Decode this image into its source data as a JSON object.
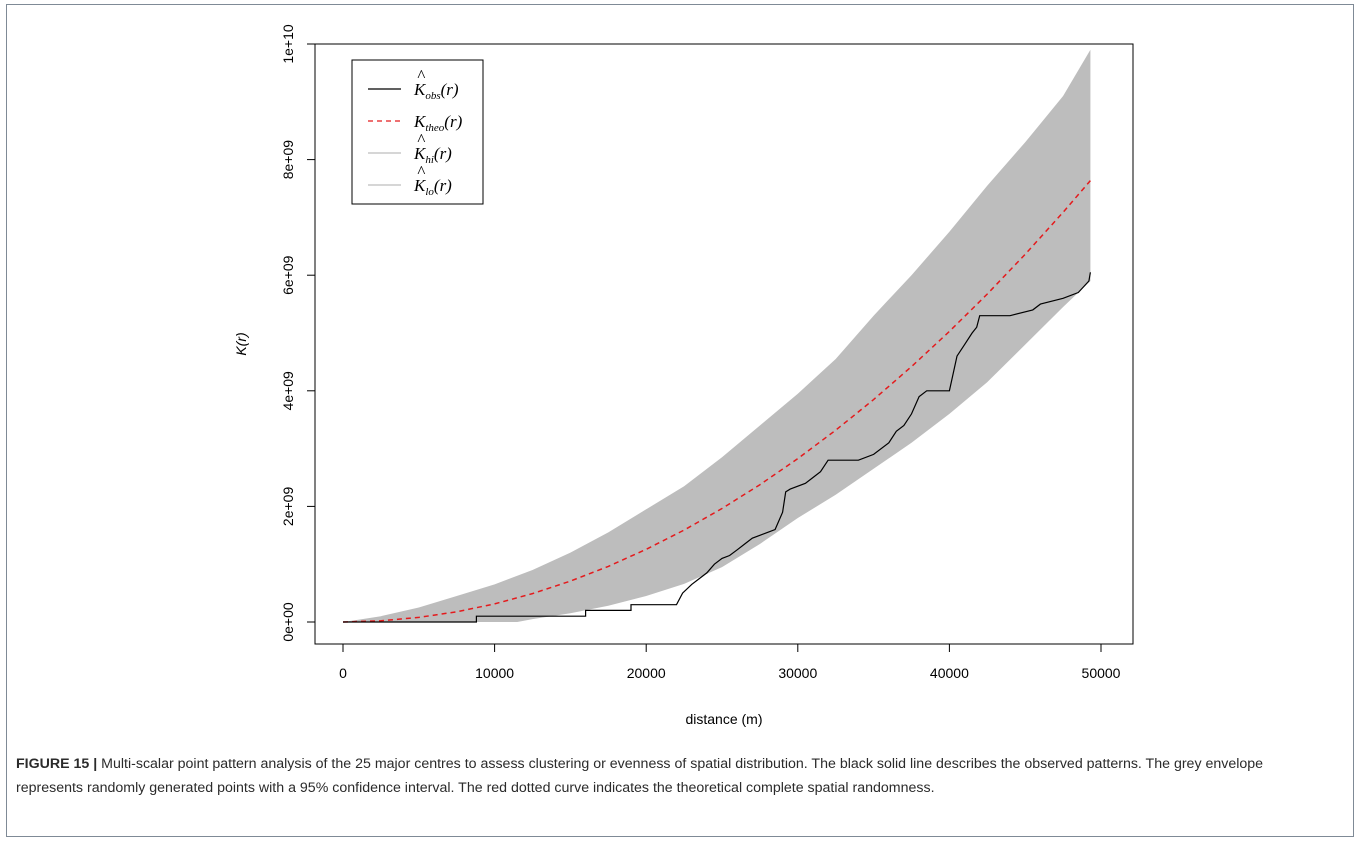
{
  "caption": {
    "label": "FIGURE 15 |",
    "text": " Multi-scalar point pattern analysis of the 25 major centres to assess clustering or evenness of spatial distribution. The black solid line describes the observed patterns. The grey envelope represents randomly generated points with a 95% confidence interval. The red dotted curve indicates the theoretical complete spatial randomness."
  },
  "chart_data": {
    "type": "line",
    "title": "",
    "xlabel": "distance (m)",
    "ylabel": "K(r)",
    "xlim": [
      0,
      49300
    ],
    "ylim": [
      0,
      10000000000
    ],
    "x_ticks": [
      0,
      10000,
      20000,
      30000,
      40000,
      50000
    ],
    "x_tick_labels": [
      "0",
      "10000",
      "20000",
      "30000",
      "40000",
      "50000"
    ],
    "y_ticks": [
      0,
      2000000000,
      4000000000,
      6000000000,
      8000000000,
      10000000000
    ],
    "y_tick_labels": [
      "0e+00",
      "2e+09",
      "4e+09",
      "6e+09",
      "8e+09",
      "1e+10"
    ],
    "grid": false,
    "legend_position": "top-left",
    "colors": {
      "observed": "#000000",
      "theoretical": "#e41a1c",
      "envelope": "#bdbdbd"
    },
    "legend": [
      {
        "base": "K",
        "hat": true,
        "sub": "obs",
        "arg": "(r)",
        "style": "solid",
        "color": "#000000"
      },
      {
        "base": "K",
        "hat": false,
        "sub": "theo",
        "arg": "(r)",
        "style": "dashed",
        "color": "#e41a1c"
      },
      {
        "base": "K",
        "hat": true,
        "sub": "hi",
        "arg": "(r)",
        "style": "solid",
        "color": "#bdbdbd"
      },
      {
        "base": "K",
        "hat": true,
        "sub": "lo",
        "arg": "(r)",
        "style": "solid",
        "color": "#bdbdbd"
      }
    ],
    "series": [
      {
        "name": "K_hi(r)",
        "x": [
          0,
          1000,
          2500,
          5000,
          7500,
          10000,
          12500,
          15000,
          17500,
          20000,
          22500,
          25000,
          27500,
          30000,
          32500,
          35000,
          37500,
          40000,
          42500,
          45000,
          47500,
          49300
        ],
        "values": [
          0,
          40000000,
          100000000,
          250000000,
          450000000,
          650000000,
          900000000,
          1200000000,
          1550000000,
          1950000000,
          2350000000,
          2850000000,
          3400000000,
          3950000000,
          4550000000,
          5300000000,
          6000000000,
          6750000000,
          7550000000,
          8300000000,
          9100000000,
          9900000000
        ]
      },
      {
        "name": "K_lo(r)",
        "x": [
          0,
          1000,
          2500,
          5000,
          7500,
          10000,
          11500,
          12500,
          15000,
          17500,
          20000,
          22500,
          25000,
          27500,
          30000,
          32500,
          35000,
          37500,
          40000,
          42500,
          45000,
          47500,
          49300
        ],
        "values": [
          0,
          0,
          0,
          0,
          0,
          0,
          0,
          50000000,
          150000000,
          280000000,
          450000000,
          660000000,
          950000000,
          1350000000,
          1800000000,
          2200000000,
          2650000000,
          3100000000,
          3600000000,
          4150000000,
          4800000000,
          5450000000,
          5900000000
        ]
      },
      {
        "name": "K_theo(r)",
        "x": [
          0,
          2500,
          5000,
          7500,
          10000,
          12500,
          15000,
          17500,
          20000,
          22500,
          25000,
          27500,
          30000,
          32500,
          35000,
          37500,
          40000,
          42500,
          45000,
          47500,
          49300
        ],
        "values": [
          0,
          20000000,
          79000000,
          177000000,
          314000000,
          491000000,
          707000000,
          962000000,
          1257000000,
          1590000000,
          1963000000,
          2376000000,
          2827000000,
          3318000000,
          3848000000,
          4418000000,
          5027000000,
          5675000000,
          6362000000,
          7088000000,
          7636000000
        ]
      },
      {
        "name": "K_obs(r)",
        "x": [
          0,
          8800,
          8800,
          16000,
          16000,
          19000,
          19000,
          22000,
          22400,
          23000,
          23500,
          24000,
          24500,
          25000,
          25500,
          26000,
          26500,
          27000,
          27500,
          28000,
          28500,
          29000,
          29200,
          29500,
          30500,
          31000,
          31500,
          32000,
          33000,
          34000,
          35000,
          36000,
          36500,
          37000,
          37500,
          38000,
          38500,
          40000,
          40500,
          41000,
          41500,
          41800,
          42000,
          44000,
          45500,
          46000,
          47500,
          48500,
          49200,
          49300
        ],
        "values": [
          0,
          0,
          100000000,
          100000000,
          200000000,
          200000000,
          300000000,
          300000000,
          500000000,
          650000000,
          750000000,
          850000000,
          1000000000,
          1100000000,
          1150000000,
          1250000000,
          1350000000,
          1450000000,
          1500000000,
          1550000000,
          1600000000,
          1900000000,
          2250000000,
          2300000000,
          2400000000,
          2500000000,
          2600000000,
          2800000000,
          2800000000,
          2800000000,
          2900000000,
          3100000000,
          3300000000,
          3400000000,
          3600000000,
          3900000000,
          4000000000,
          4000000000,
          4600000000,
          4800000000,
          5000000000,
          5100000000,
          5300000000,
          5300000000,
          5400000000,
          5500000000,
          5600000000,
          5700000000,
          5900000000,
          6050000000
        ]
      }
    ]
  }
}
